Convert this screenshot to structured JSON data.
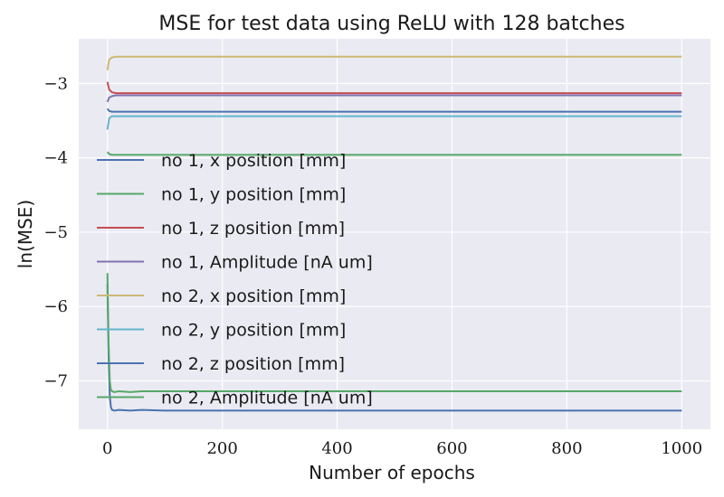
{
  "chart_data": {
    "type": "line",
    "title": "MSE for test data using ReLU with 128 batches",
    "xlabel": "Number of epochs",
    "ylabel": "ln(MSE)",
    "xlim": [
      -50,
      1050
    ],
    "ylim": [
      -7.65,
      -2.4
    ],
    "xticks": [
      0,
      200,
      400,
      600,
      800,
      1000
    ],
    "xtick_labels": [
      "0",
      "200",
      "400",
      "600",
      "800",
      "1000"
    ],
    "yticks": [
      -7,
      -6,
      -5,
      -4,
      -3
    ],
    "ytick_labels": [
      "−7",
      "−6",
      "−5",
      "−4",
      "−3"
    ],
    "grid": true,
    "legend_position": "center-left",
    "series": [
      {
        "name": "no 1, x position [mm]",
        "color": "#4c72b0",
        "x": [
          0,
          3,
          8,
          15,
          30,
          100,
          1000
        ],
        "y": [
          -3.34,
          -3.37,
          -3.38,
          -3.38,
          -3.38,
          -3.38,
          -3.38
        ]
      },
      {
        "name": "no 1, y position [mm]",
        "color": "#55a868",
        "x": [
          0,
          3,
          8,
          15,
          30,
          100,
          1000
        ],
        "y": [
          -3.92,
          -3.95,
          -3.96,
          -3.96,
          -3.96,
          -3.96,
          -3.96
        ]
      },
      {
        "name": "no 1, z position [mm]",
        "color": "#c44e52",
        "x": [
          0,
          3,
          8,
          15,
          30,
          100,
          1000
        ],
        "y": [
          -2.98,
          -3.08,
          -3.12,
          -3.13,
          -3.13,
          -3.13,
          -3.13
        ]
      },
      {
        "name": "no 1, Amplitude [nA um]",
        "color": "#8172b2",
        "x": [
          0,
          3,
          8,
          15,
          30,
          100,
          1000
        ],
        "y": [
          -3.25,
          -3.19,
          -3.17,
          -3.16,
          -3.16,
          -3.16,
          -3.16
        ]
      },
      {
        "name": "no 2, x position [mm]",
        "color": "#ccb974",
        "x": [
          0,
          3,
          8,
          15,
          30,
          100,
          1000
        ],
        "y": [
          -2.82,
          -2.68,
          -2.65,
          -2.64,
          -2.64,
          -2.64,
          -2.64
        ]
      },
      {
        "name": "no 2, y position [mm]",
        "color": "#64b5cd",
        "x": [
          0,
          3,
          8,
          15,
          30,
          100,
          1000
        ],
        "y": [
          -3.62,
          -3.47,
          -3.44,
          -3.44,
          -3.44,
          -3.44,
          -3.44
        ]
      },
      {
        "name": "no 2, z position [mm]",
        "color": "#4c72b0",
        "x": [
          0,
          2,
          4,
          6,
          8,
          12,
          20,
          40,
          60,
          100,
          200,
          400,
          1000
        ],
        "y": [
          -5.7,
          -6.7,
          -7.2,
          -7.35,
          -7.39,
          -7.4,
          -7.39,
          -7.4,
          -7.39,
          -7.4,
          -7.4,
          -7.4,
          -7.4
        ]
      },
      {
        "name": "no 2, Amplitude [nA um]",
        "color": "#55a868",
        "x": [
          0,
          2,
          4,
          6,
          8,
          12,
          20,
          40,
          60,
          100,
          200,
          400,
          1000
        ],
        "y": [
          -5.55,
          -6.5,
          -7.0,
          -7.12,
          -7.14,
          -7.15,
          -7.14,
          -7.15,
          -7.14,
          -7.14,
          -7.14,
          -7.14,
          -7.14
        ]
      }
    ]
  }
}
